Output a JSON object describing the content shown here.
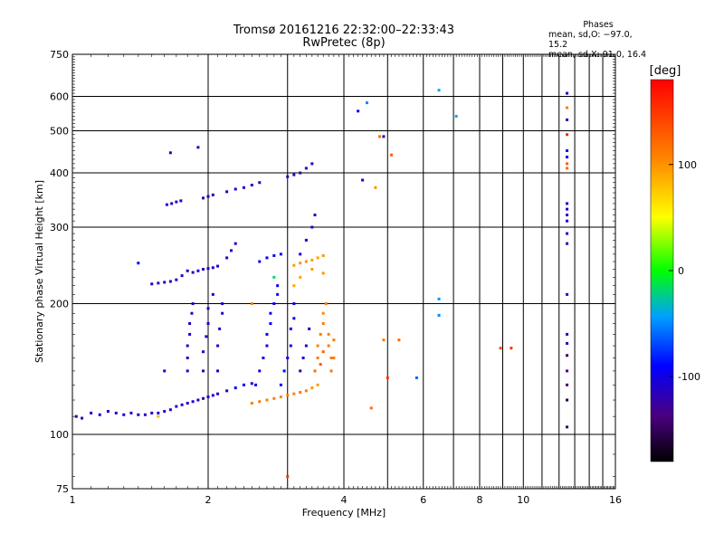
{
  "header": {
    "title_line1": "Tromsø 20161216 22:32:00–22:33:43",
    "title_line2": "RwPretec (8p)"
  },
  "phases": {
    "heading": "Phases",
    "line_o": "mean, sd,O: −97.0, 15.2",
    "line_x": "mean, sd,X:  91.0, 16.4"
  },
  "chart_data": {
    "type": "scatter",
    "title": "Tromsø 20161216 22:32:00–22:33:43",
    "subtitle": "RwPretec (8p)",
    "xlabel": "Frequency [MHz]",
    "ylabel": "Stationary phase Virtual Height [km]",
    "x_scale": "log",
    "y_scale": "log",
    "xlim": [
      1,
      16
    ],
    "ylim": [
      75,
      750
    ],
    "x_ticks": [
      1,
      2,
      4,
      6,
      8,
      10,
      16
    ],
    "x_tick_labels": [
      "1",
      "2",
      "4",
      "6",
      "8",
      "10",
      "16"
    ],
    "y_ticks": [
      75,
      100,
      200,
      300,
      400,
      500,
      600,
      750
    ],
    "y_tick_labels": [
      "75",
      "100",
      "200",
      "300",
      "400",
      "500",
      "600",
      "750"
    ],
    "grid": true,
    "colorbar": {
      "label": "[deg]",
      "range": [
        -180,
        180
      ],
      "ticks": [
        100,
        0,
        -100
      ],
      "tick_labels": [
        "100",
        "0",
        "-100"
      ]
    },
    "series": [
      {
        "name": "",
        "marker": "dot",
        "points": [
          [
            1.02,
            110,
            -110
          ],
          [
            1.05,
            109,
            -112
          ],
          [
            1.1,
            112,
            -105
          ],
          [
            1.15,
            111,
            -110
          ],
          [
            1.2,
            113,
            -108
          ],
          [
            1.25,
            112,
            -112
          ],
          [
            1.3,
            111,
            -106
          ],
          [
            1.35,
            112,
            -110
          ],
          [
            1.4,
            111,
            -108
          ],
          [
            1.45,
            111,
            -112
          ],
          [
            1.5,
            112,
            -110
          ],
          [
            1.55,
            112,
            -105
          ],
          [
            1.6,
            113,
            -110
          ],
          [
            1.65,
            114,
            -108
          ],
          [
            1.7,
            116,
            -112
          ],
          [
            1.75,
            117,
            -110
          ],
          [
            1.8,
            118,
            -106
          ],
          [
            1.85,
            119,
            -110
          ],
          [
            1.9,
            120,
            -108
          ],
          [
            1.95,
            121,
            -112
          ],
          [
            2.0,
            122,
            -110
          ],
          [
            2.05,
            123,
            -100
          ],
          [
            2.1,
            124,
            -108
          ],
          [
            2.2,
            126,
            -110
          ],
          [
            2.3,
            128,
            -95
          ],
          [
            2.4,
            130,
            -92
          ],
          [
            2.5,
            131,
            -90
          ],
          [
            1.5,
            222,
            -110
          ],
          [
            1.55,
            223,
            -112
          ],
          [
            1.6,
            224,
            -108
          ],
          [
            1.65,
            225,
            -110
          ],
          [
            1.7,
            227,
            -110
          ],
          [
            1.75,
            232,
            -112
          ],
          [
            1.8,
            238,
            -108
          ],
          [
            1.85,
            236,
            -110
          ],
          [
            1.9,
            238,
            -105
          ],
          [
            1.95,
            240,
            -110
          ],
          [
            2.0,
            241,
            -108
          ],
          [
            2.05,
            242,
            -112
          ],
          [
            2.1,
            244,
            -110
          ],
          [
            1.62,
            338,
            -110
          ],
          [
            1.66,
            340,
            -112
          ],
          [
            1.7,
            343,
            -108
          ],
          [
            1.74,
            345,
            -110
          ],
          [
            1.95,
            350,
            -110
          ],
          [
            2.0,
            353,
            -108
          ],
          [
            2.05,
            356,
            -112
          ],
          [
            2.2,
            362,
            -110
          ],
          [
            2.3,
            367,
            -108
          ],
          [
            2.4,
            370,
            -112
          ],
          [
            2.5,
            375,
            -110
          ],
          [
            2.6,
            380,
            -106
          ],
          [
            3.0,
            392,
            -115
          ],
          [
            3.1,
            396,
            -120
          ],
          [
            3.2,
            400,
            -118
          ],
          [
            3.3,
            410,
            -115
          ],
          [
            3.4,
            420,
            -110
          ],
          [
            1.65,
            445,
            -110
          ],
          [
            1.9,
            458,
            -115
          ],
          [
            1.4,
            248,
            -90
          ],
          [
            1.8,
            140,
            -108
          ],
          [
            1.8,
            150,
            -110
          ],
          [
            1.8,
            160,
            -112
          ],
          [
            1.82,
            170,
            -108
          ],
          [
            1.82,
            180,
            -110
          ],
          [
            1.84,
            190,
            -112
          ],
          [
            1.85,
            200,
            -110
          ],
          [
            1.95,
            140,
            -112
          ],
          [
            1.95,
            155,
            -110
          ],
          [
            1.98,
            168,
            -108
          ],
          [
            2.0,
            180,
            -110
          ],
          [
            2.0,
            195,
            -112
          ],
          [
            2.05,
            210,
            -108
          ],
          [
            2.1,
            140,
            -110
          ],
          [
            2.1,
            160,
            -112
          ],
          [
            2.12,
            175,
            -110
          ],
          [
            2.15,
            190,
            -108
          ],
          [
            2.15,
            200,
            -110
          ],
          [
            2.2,
            255,
            -110
          ],
          [
            2.25,
            265,
            -112
          ],
          [
            2.3,
            275,
            -108
          ],
          [
            2.6,
            250,
            -100
          ],
          [
            2.7,
            255,
            -95
          ],
          [
            2.8,
            258,
            -90
          ],
          [
            2.9,
            260,
            -92
          ],
          [
            2.55,
            130,
            -98
          ],
          [
            2.6,
            140,
            -100
          ],
          [
            2.65,
            150,
            -95
          ],
          [
            2.7,
            160,
            -92
          ],
          [
            2.7,
            170,
            -96
          ],
          [
            2.75,
            180,
            -90
          ],
          [
            2.75,
            190,
            -95
          ],
          [
            2.8,
            200,
            -92
          ],
          [
            2.85,
            210,
            -90
          ],
          [
            2.85,
            220,
            -95
          ],
          [
            2.9,
            130,
            -85
          ],
          [
            2.95,
            140,
            -88
          ],
          [
            3.0,
            150,
            -90
          ],
          [
            3.05,
            160,
            -92
          ],
          [
            3.05,
            175,
            -95
          ],
          [
            3.1,
            185,
            -98
          ],
          [
            3.1,
            200,
            -95
          ],
          [
            3.2,
            260,
            -100
          ],
          [
            3.3,
            280,
            -105
          ],
          [
            3.4,
            300,
            -110
          ],
          [
            3.45,
            320,
            -108
          ],
          [
            3.2,
            140,
            -105
          ],
          [
            3.25,
            150,
            -108
          ],
          [
            3.3,
            160,
            -110
          ],
          [
            3.35,
            175,
            -108
          ],
          [
            2.5,
            118,
            110
          ],
          [
            2.6,
            119,
            112
          ],
          [
            2.7,
            120,
            108
          ],
          [
            2.8,
            121,
            110
          ],
          [
            2.9,
            122,
            106
          ],
          [
            3.0,
            123,
            110
          ],
          [
            3.1,
            124,
            108
          ],
          [
            3.2,
            125,
            112
          ],
          [
            3.3,
            126,
            110
          ],
          [
            3.4,
            128,
            100
          ],
          [
            3.5,
            130,
            95
          ],
          [
            3.1,
            245,
            95
          ],
          [
            3.2,
            248,
            98
          ],
          [
            3.3,
            250,
            100
          ],
          [
            3.4,
            252,
            95
          ],
          [
            3.5,
            255,
            92
          ],
          [
            3.6,
            258,
            98
          ],
          [
            3.5,
            150,
            110
          ],
          [
            3.5,
            160,
            108
          ],
          [
            3.55,
            170,
            112
          ],
          [
            3.6,
            180,
            110
          ],
          [
            3.6,
            190,
            105
          ],
          [
            3.65,
            200,
            110
          ],
          [
            3.7,
            160,
            112
          ],
          [
            3.7,
            170,
            108
          ],
          [
            3.75,
            150,
            110
          ],
          [
            3.75,
            140,
            115
          ],
          [
            3.8,
            150,
            108
          ],
          [
            3.8,
            165,
            112
          ],
          [
            3.45,
            140,
            120
          ],
          [
            3.55,
            145,
            130
          ],
          [
            3.6,
            155,
            125
          ],
          [
            3.1,
            220,
            90
          ],
          [
            3.2,
            230,
            92
          ],
          [
            3.4,
            240,
            95
          ],
          [
            3.6,
            235,
            100
          ],
          [
            2.5,
            200,
            110
          ],
          [
            2.8,
            230,
            -20
          ],
          [
            4.3,
            555,
            -100
          ],
          [
            4.5,
            580,
            -50
          ],
          [
            4.8,
            485,
            120
          ],
          [
            4.9,
            485,
            -110
          ],
          [
            5.1,
            440,
            130
          ],
          [
            4.4,
            385,
            -105
          ],
          [
            4.7,
            370,
            100
          ],
          [
            4.9,
            165,
            110
          ],
          [
            5.3,
            165,
            120
          ],
          [
            5.0,
            135,
            150
          ],
          [
            4.6,
            115,
            120
          ],
          [
            5.8,
            135,
            -60
          ],
          [
            6.5,
            620,
            -40
          ],
          [
            7.1,
            540,
            -40
          ],
          [
            6.5,
            205,
            -45
          ],
          [
            6.5,
            188,
            -50
          ],
          [
            8.9,
            158,
            140
          ],
          [
            9.4,
            158,
            150
          ],
          [
            3.0,
            80,
            150
          ],
          [
            12.5,
            610,
            -110
          ],
          [
            12.5,
            565,
            110
          ],
          [
            12.5,
            530,
            -120
          ],
          [
            12.5,
            490,
            160
          ],
          [
            12.5,
            450,
            -90
          ],
          [
            12.5,
            435,
            -100
          ],
          [
            12.5,
            420,
            130
          ],
          [
            12.5,
            410,
            120
          ],
          [
            12.5,
            340,
            -110
          ],
          [
            12.5,
            330,
            -105
          ],
          [
            12.5,
            320,
            -112
          ],
          [
            12.5,
            310,
            -108
          ],
          [
            12.5,
            290,
            -110
          ],
          [
            12.5,
            275,
            -115
          ],
          [
            12.5,
            210,
            -110
          ],
          [
            12.5,
            170,
            -110
          ],
          [
            12.5,
            162,
            -120
          ],
          [
            12.5,
            152,
            -150
          ],
          [
            12.5,
            140,
            -130
          ],
          [
            12.5,
            130,
            -140
          ],
          [
            12.5,
            120,
            -160
          ],
          [
            12.5,
            104,
            -150
          ],
          [
            1.6,
            140,
            -100
          ],
          [
            1.55,
            110,
            80
          ]
        ]
      }
    ]
  },
  "colors": {
    "background": "#ffffff",
    "grid": "#000000",
    "frame": "#000000"
  }
}
